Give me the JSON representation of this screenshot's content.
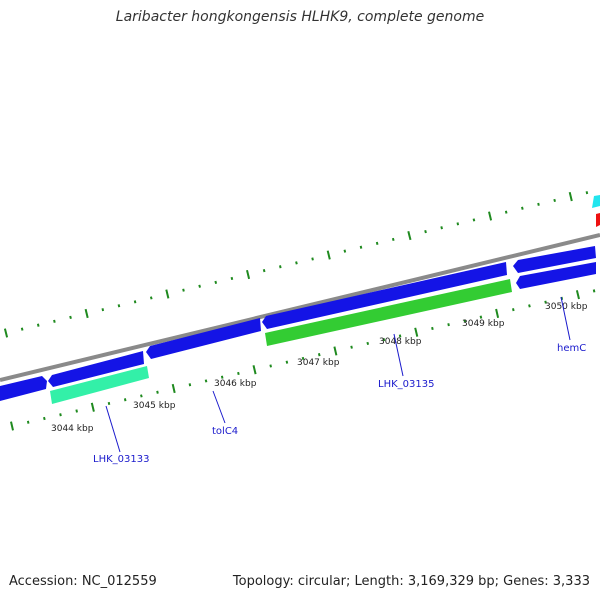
{
  "title": "Laribacter hongkongensis HLHK9, complete genome",
  "footer": {
    "accession": "Accession: NC_012559",
    "topology": "Topology: circular; Length: 3,169,329 bp; Genes: 3,333"
  },
  "colors": {
    "backbone": "#8a8a8a",
    "tick": "#1f8a1f",
    "gene_blue": "#1414e6",
    "gene_green": "#33cc33",
    "gene_mint": "#33f0a8",
    "gene_cyan": "#22e5ee",
    "gene_red": "#ee1111",
    "label": "#1a1acc"
  },
  "ticks": [
    "3044 kbp",
    "3045 kbp",
    "3046 kbp",
    "3047 kbp",
    "3048 kbp",
    "3049 kbp",
    "3050 kbp"
  ],
  "gene_labels": [
    "LHK_03133",
    "tolC4",
    "LHK_03135",
    "hemC"
  ]
}
